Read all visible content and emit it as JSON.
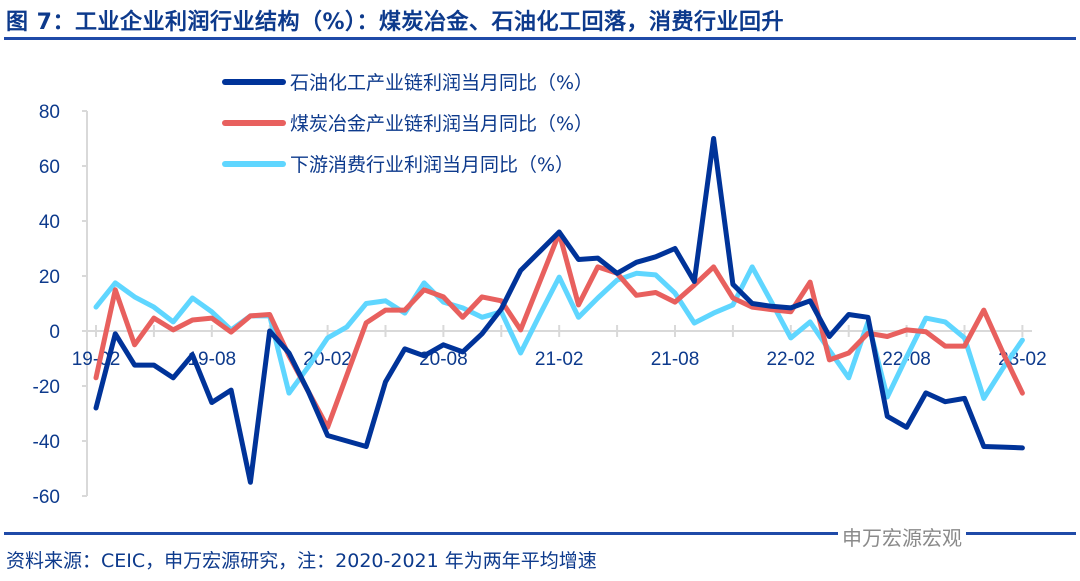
{
  "header": {
    "title": "图 7：工业企业利润行业结构（%）：煤炭冶金、石油化工回落，消费行业回升"
  },
  "footer": {
    "source": "资料来源：CEIC，申万宏源研究，注：2020-2021 年为两年平均增速",
    "watermark": "申万宏源宏观"
  },
  "chart_data": {
    "type": "line",
    "title": "工业企业利润行业结构（%）",
    "xlabel": "",
    "ylabel": "",
    "ylim": [
      -60,
      80
    ],
    "yticks": [
      "80",
      "60",
      "40",
      "20",
      "0",
      "-20",
      "-40",
      "-60"
    ],
    "ytick_values": [
      80,
      60,
      40,
      20,
      0,
      -20,
      -40,
      -60
    ],
    "xtick_labels": [
      "19-02",
      "19-08",
      "20-02",
      "20-08",
      "21-02",
      "21-08",
      "22-02",
      "22-08",
      "23-02"
    ],
    "xtick_index": [
      0,
      6,
      12,
      18,
      24,
      30,
      36,
      42,
      48
    ],
    "legend_placement": "top-center",
    "series": [
      {
        "name": "石油化工产业链利润当月同比（%）",
        "color": "#003399",
        "values": [
          -28,
          -1,
          -12.4,
          -12.4,
          -17,
          -8.7,
          -26,
          -21.5,
          -55,
          0,
          -8,
          -22,
          -38,
          -40,
          -42,
          -18.5,
          -6.5,
          -9,
          -5,
          -7.6,
          -1,
          8,
          22,
          29,
          36,
          26,
          26.5,
          21,
          25,
          27,
          30,
          18,
          70,
          17,
          10,
          9,
          8.4,
          11,
          -2,
          6,
          5,
          -31,
          -35,
          -22.5,
          -25.7,
          -24.5,
          -42,
          -42.2,
          -42.5
        ]
      },
      {
        "name": "煤炭冶金产业链利润当月同比（%）",
        "color": "#E8605E",
        "values": [
          -17,
          15,
          -5,
          4.7,
          0.4,
          4,
          4.7,
          -0.4,
          5.5,
          6,
          -9,
          -22,
          -35,
          -16,
          3,
          7.6,
          7.6,
          15,
          12.4,
          5,
          12.4,
          11,
          0.4,
          18,
          35.6,
          9.5,
          23.3,
          21,
          13,
          14,
          10.5,
          16.7,
          23.3,
          12,
          8.7,
          7.8,
          7,
          17.8,
          -10.5,
          -8,
          -0.8,
          -2,
          0.4,
          -0.3,
          -5.5,
          -5.5,
          7.6,
          -8,
          -22.6
        ]
      },
      {
        "name": "下游消费行业利润当月同比（%）",
        "color": "#5FD6FF",
        "values": [
          8.7,
          17.5,
          12.4,
          8.7,
          3.3,
          12,
          7,
          0.4,
          5.5,
          5.5,
          -22.6,
          -13,
          -2.5,
          1.5,
          10,
          11,
          6.5,
          17.5,
          10.5,
          8.4,
          5,
          7,
          -8,
          6,
          19.6,
          5,
          12,
          18.5,
          21,
          20.4,
          13.8,
          2.9,
          6.5,
          9.5,
          23.3,
          10.5,
          -2.5,
          3.3,
          -7,
          -17,
          3.3,
          -24,
          -9.4,
          4.7,
          3.3,
          -2.5,
          -24.5,
          -13.4,
          -3.3
        ]
      }
    ]
  }
}
